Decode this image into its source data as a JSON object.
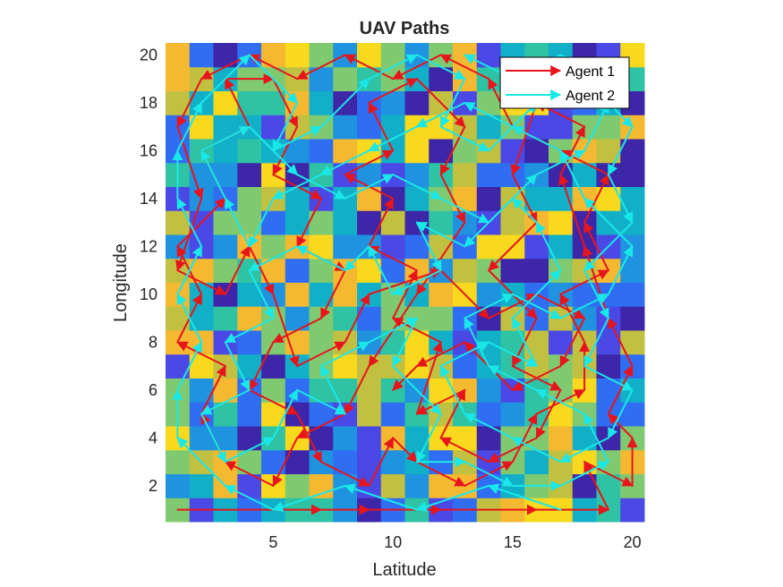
{
  "chart_data": {
    "type": "heatmap",
    "title": "UAV Paths",
    "xlabel": "Latitude",
    "ylabel": "Longitude",
    "xlim": [
      0.5,
      20.5
    ],
    "ylim": [
      0.5,
      20.5
    ],
    "xticks": [
      5,
      10,
      15,
      20
    ],
    "yticks": [
      2,
      4,
      6,
      8,
      10,
      12,
      14,
      16,
      18,
      20
    ],
    "legend_position": "top-right",
    "colormap": "parula",
    "grid_size": [
      20,
      20
    ],
    "series": [
      {
        "name": "Agent 1",
        "color": "#e8141b",
        "points": [
          [
            1,
            1
          ],
          [
            7,
            1
          ],
          [
            9,
            1
          ],
          [
            12,
            1
          ],
          [
            16,
            1
          ],
          [
            19,
            1
          ],
          [
            18,
            3
          ],
          [
            20,
            2
          ],
          [
            20,
            4
          ],
          [
            19,
            5
          ],
          [
            20,
            7
          ],
          [
            19,
            9
          ],
          [
            18,
            12
          ],
          [
            17,
            15
          ],
          [
            18,
            17
          ],
          [
            16,
            18
          ],
          [
            15,
            15
          ],
          [
            16,
            13
          ],
          [
            14,
            11
          ],
          [
            16,
            9
          ],
          [
            15,
            7
          ],
          [
            17,
            6
          ],
          [
            16,
            4
          ],
          [
            14,
            3
          ],
          [
            12,
            4
          ],
          [
            13,
            6
          ],
          [
            11,
            5
          ],
          [
            12,
            8
          ],
          [
            10,
            9
          ],
          [
            11,
            11
          ],
          [
            9,
            12
          ],
          [
            10,
            14
          ],
          [
            8,
            15
          ],
          [
            10,
            16
          ],
          [
            9,
            18
          ],
          [
            11,
            19
          ],
          [
            13,
            17
          ],
          [
            12,
            15
          ],
          [
            13,
            13
          ],
          [
            11,
            10
          ],
          [
            9,
            7
          ],
          [
            8,
            5
          ],
          [
            6,
            4
          ],
          [
            5,
            2
          ],
          [
            3,
            3
          ],
          [
            2,
            5
          ],
          [
            3,
            7
          ],
          [
            1,
            8
          ],
          [
            2,
            10
          ],
          [
            1,
            12
          ],
          [
            3,
            14
          ],
          [
            2,
            16
          ],
          [
            4,
            17
          ],
          [
            3,
            19
          ],
          [
            5,
            19
          ],
          [
            6,
            17
          ],
          [
            5,
            15
          ],
          [
            7,
            14
          ],
          [
            6,
            12
          ],
          [
            8,
            11
          ],
          [
            7,
            9
          ],
          [
            5,
            8
          ],
          [
            4,
            6
          ],
          [
            6,
            5
          ],
          [
            7,
            3
          ],
          [
            9,
            2
          ],
          [
            10,
            4
          ],
          [
            11,
            3
          ],
          [
            13,
            2
          ],
          [
            15,
            3
          ],
          [
            16,
            5
          ],
          [
            18,
            6
          ],
          [
            18,
            8
          ],
          [
            17,
            10
          ],
          [
            19,
            11
          ],
          [
            18,
            13
          ],
          [
            19,
            15
          ],
          [
            17,
            16
          ],
          [
            15,
            17
          ],
          [
            14,
            19
          ],
          [
            12,
            20
          ],
          [
            10,
            19
          ],
          [
            8,
            20
          ],
          [
            6,
            19
          ],
          [
            4,
            20
          ],
          [
            2,
            19
          ],
          [
            1,
            17
          ],
          [
            2,
            14
          ],
          [
            1,
            11
          ],
          [
            3,
            10
          ],
          [
            4,
            12
          ],
          [
            5,
            10
          ],
          [
            6,
            7
          ],
          [
            8,
            8
          ],
          [
            9,
            10
          ],
          [
            12,
            11
          ],
          [
            14,
            9
          ],
          [
            16,
            10
          ],
          [
            18,
            9
          ],
          [
            17,
            7
          ],
          [
            15,
            6
          ],
          [
            13,
            8
          ],
          [
            11,
            7
          ],
          [
            10,
            6
          ]
        ]
      },
      {
        "name": "Agent 2",
        "color": "#19e8e8",
        "points": [
          [
            17,
            1
          ],
          [
            14,
            2
          ],
          [
            11,
            1
          ],
          [
            8,
            2
          ],
          [
            5,
            1
          ],
          [
            3,
            2
          ],
          [
            1,
            4
          ],
          [
            1,
            6
          ],
          [
            2,
            8
          ],
          [
            1,
            10
          ],
          [
            2,
            12
          ],
          [
            1,
            14
          ],
          [
            1,
            16
          ],
          [
            2,
            18
          ],
          [
            4,
            20
          ],
          [
            6,
            18
          ],
          [
            5,
            16
          ],
          [
            7,
            17
          ],
          [
            9,
            19
          ],
          [
            11,
            20
          ],
          [
            13,
            19
          ],
          [
            12,
            17
          ],
          [
            14,
            16
          ],
          [
            16,
            18
          ],
          [
            18,
            19
          ],
          [
            20,
            17
          ],
          [
            19,
            15
          ],
          [
            20,
            13
          ],
          [
            18,
            11
          ],
          [
            19,
            9
          ],
          [
            18,
            7
          ],
          [
            20,
            6
          ],
          [
            19,
            4
          ],
          [
            17,
            3
          ],
          [
            15,
            4
          ],
          [
            13,
            5
          ],
          [
            12,
            7
          ],
          [
            14,
            8
          ],
          [
            16,
            7
          ],
          [
            15,
            9
          ],
          [
            17,
            11
          ],
          [
            16,
            13
          ],
          [
            15,
            14
          ],
          [
            13,
            12
          ],
          [
            11,
            13
          ],
          [
            12,
            11
          ],
          [
            10,
            10
          ],
          [
            9,
            12
          ],
          [
            8,
            11
          ],
          [
            6,
            12
          ],
          [
            4,
            11
          ],
          [
            5,
            9
          ],
          [
            3,
            8
          ],
          [
            4,
            6
          ],
          [
            2,
            5
          ],
          [
            3,
            3
          ],
          [
            5,
            4
          ],
          [
            6,
            6
          ],
          [
            8,
            5
          ],
          [
            7,
            7
          ],
          [
            9,
            8
          ],
          [
            11,
            9
          ],
          [
            10,
            7
          ],
          [
            12,
            5
          ],
          [
            11,
            3
          ],
          [
            13,
            3
          ],
          [
            15,
            2
          ],
          [
            17,
            2
          ],
          [
            19,
            3
          ],
          [
            18,
            5
          ],
          [
            16,
            6
          ],
          [
            14,
            7
          ],
          [
            13,
            9
          ],
          [
            15,
            10
          ],
          [
            17,
            9
          ],
          [
            19,
            10
          ],
          [
            20,
            12
          ],
          [
            18,
            14
          ],
          [
            17,
            16
          ],
          [
            15,
            17
          ],
          [
            13,
            18
          ],
          [
            11,
            17
          ],
          [
            9,
            16
          ],
          [
            7,
            15
          ],
          [
            5,
            14
          ],
          [
            4,
            12
          ],
          [
            3,
            14
          ],
          [
            2,
            16
          ],
          [
            4,
            17
          ],
          [
            6,
            15
          ],
          [
            8,
            14
          ],
          [
            10,
            15
          ],
          [
            12,
            14
          ],
          [
            14,
            13
          ],
          [
            16,
            15
          ],
          [
            18,
            16
          ],
          [
            19,
            18
          ],
          [
            17,
            20
          ],
          [
            15,
            19
          ],
          [
            13,
            20
          ]
        ]
      }
    ]
  }
}
